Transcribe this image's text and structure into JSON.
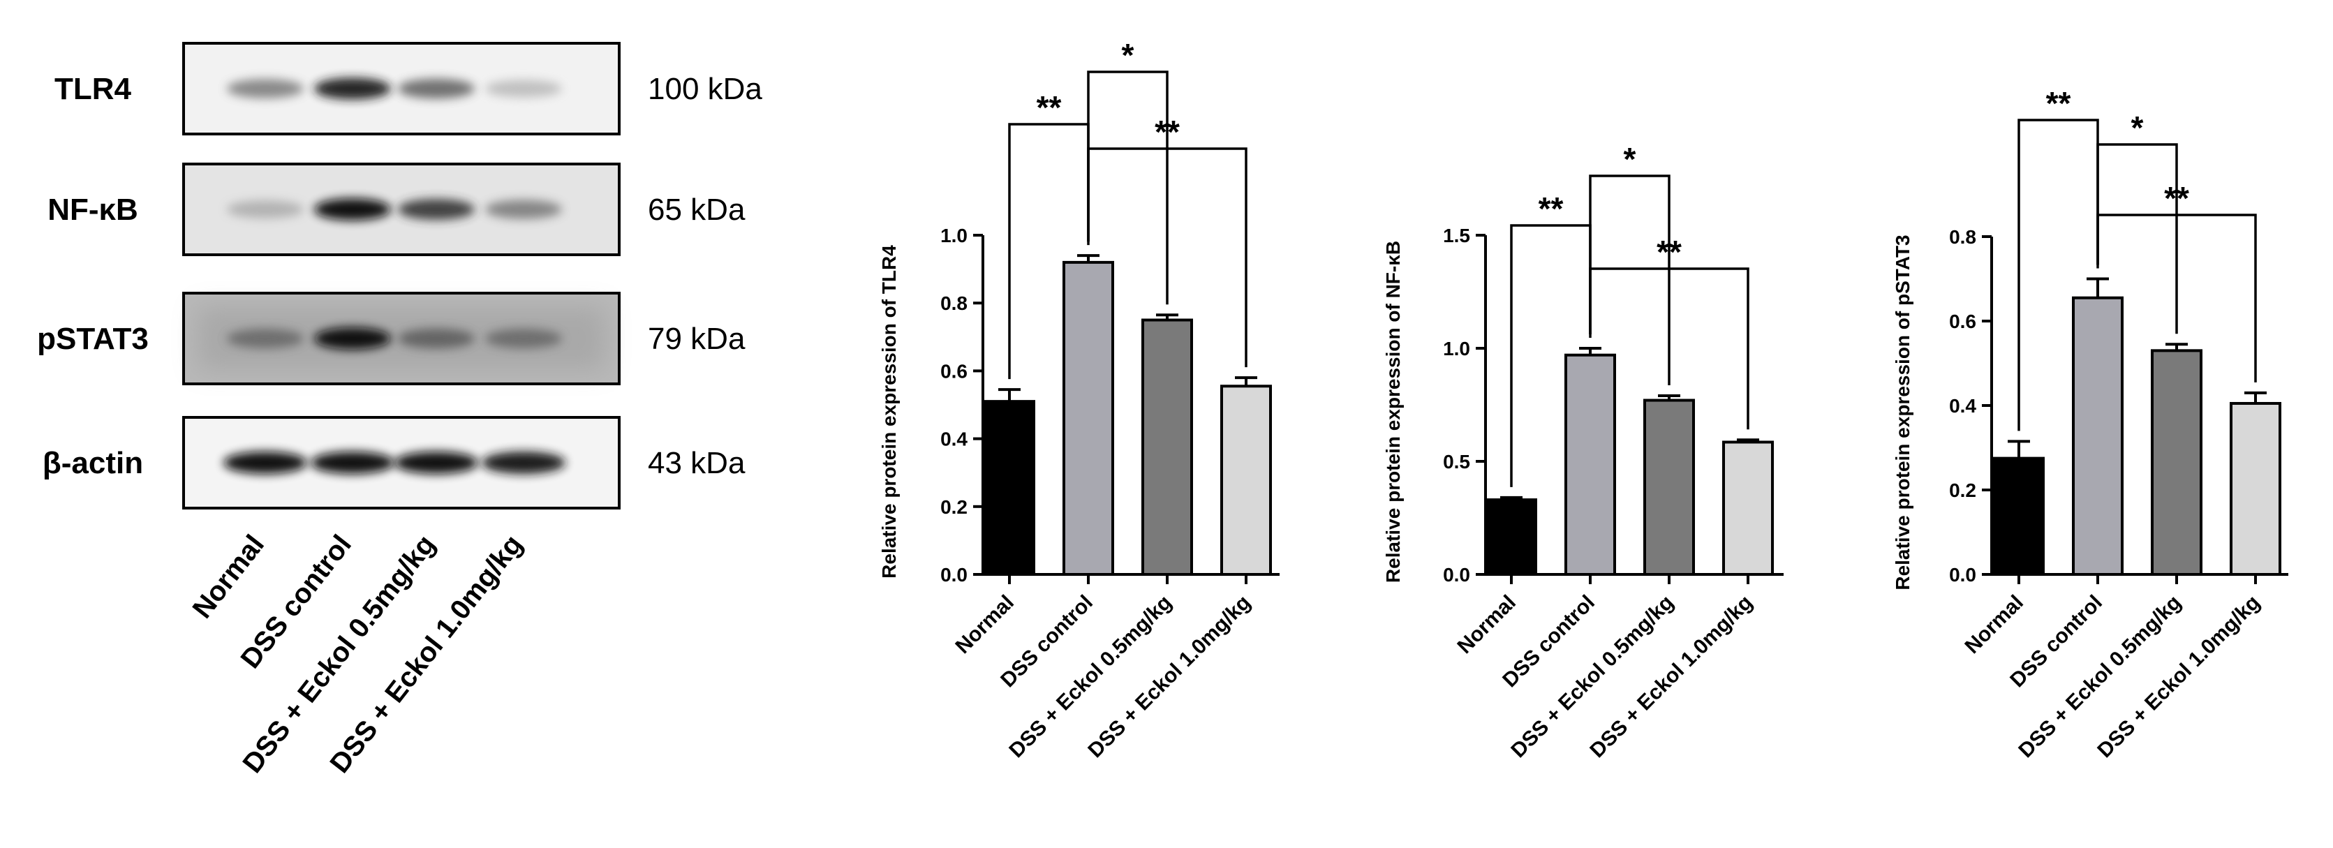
{
  "blot": {
    "rows": [
      {
        "protein": "TLR4",
        "kda": "100 kDa",
        "bands": [
          0.55,
          0.9,
          0.65,
          0.3
        ],
        "bg": "#f2f2f2"
      },
      {
        "protein": "NF-κB",
        "kda": "65 kDa",
        "bands": [
          0.35,
          0.95,
          0.8,
          0.55
        ],
        "bg": "#e4e4e4"
      },
      {
        "protein": "pSTAT3",
        "kda": "79 kDa",
        "bands": [
          0.6,
          0.95,
          0.65,
          0.6
        ],
        "bg": "#b9b9b9"
      },
      {
        "protein": "β-actin",
        "kda": "43 kDa",
        "bands": [
          0.95,
          0.95,
          0.95,
          0.92
        ],
        "bg": "#f4f4f4"
      }
    ],
    "lanes": [
      "Normal",
      "DSS control",
      "DSS + Eckol 0.5mg/kg",
      "DSS + Eckol 1.0mg/kg"
    ]
  },
  "chart_data": [
    {
      "type": "bar",
      "categories": [
        "Normal",
        "DSS control",
        "DSS + Eckol 0.5mg/kg",
        "DSS + Eckol 1.0mg/kg"
      ],
      "values": [
        0.51,
        0.92,
        0.75,
        0.555
      ],
      "errors": [
        0.035,
        0.02,
        0.015,
        0.025
      ],
      "colors": [
        "#000000",
        "#a8a8b0",
        "#7a7a7a",
        "#d8d8d8"
      ],
      "ylabel": "Relative protein expression of TLR4",
      "ylim": [
        0,
        1.0
      ],
      "yticks": [
        0.0,
        0.2,
        0.4,
        0.6,
        0.8,
        1.0
      ],
      "ytick_labels": [
        "0.0",
        "0.2",
        "0.4",
        "0.6",
        "0.8",
        "1.0"
      ],
      "significance": [
        {
          "from": 0,
          "to": 1,
          "label": "**"
        },
        {
          "from": 1,
          "to": 2,
          "label": "*"
        },
        {
          "from": 1,
          "to": 3,
          "label": "**"
        }
      ]
    },
    {
      "type": "bar",
      "categories": [
        "Normal",
        "DSS control",
        "DSS + Eckol 0.5mg/kg",
        "DSS + Eckol 1.0mg/kg"
      ],
      "values": [
        0.33,
        0.97,
        0.77,
        0.585
      ],
      "errors": [
        0.01,
        0.03,
        0.02,
        0.01
      ],
      "colors": [
        "#000000",
        "#a8a8b0",
        "#7a7a7a",
        "#d8d8d8"
      ],
      "ylabel": "Relative protein expression of NF-κB",
      "ylim": [
        0,
        1.5
      ],
      "yticks": [
        0.0,
        0.5,
        1.0,
        1.5
      ],
      "ytick_labels": [
        "0.0",
        "0.5",
        "1.0",
        "1.5"
      ],
      "significance": [
        {
          "from": 0,
          "to": 1,
          "label": "**"
        },
        {
          "from": 1,
          "to": 2,
          "label": "*"
        },
        {
          "from": 1,
          "to": 3,
          "label": "**"
        }
      ]
    },
    {
      "type": "bar",
      "categories": [
        "Normal",
        "DSS control",
        "DSS + Eckol 0.5mg/kg",
        "DSS + Eckol 1.0mg/kg"
      ],
      "values": [
        0.275,
        0.655,
        0.53,
        0.405
      ],
      "errors": [
        0.04,
        0.045,
        0.015,
        0.025
      ],
      "colors": [
        "#000000",
        "#a8a8b0",
        "#7a7a7a",
        "#d8d8d8"
      ],
      "ylabel": "Relative protein expression of pSTAT3",
      "ylim": [
        0,
        0.8
      ],
      "yticks": [
        0.0,
        0.2,
        0.4,
        0.6,
        0.8
      ],
      "ytick_labels": [
        "0.0",
        "0.2",
        "0.4",
        "0.6",
        "0.8"
      ],
      "significance": [
        {
          "from": 0,
          "to": 1,
          "label": "**"
        },
        {
          "from": 1,
          "to": 2,
          "label": "*"
        },
        {
          "from": 1,
          "to": 3,
          "label": "**"
        }
      ]
    }
  ]
}
